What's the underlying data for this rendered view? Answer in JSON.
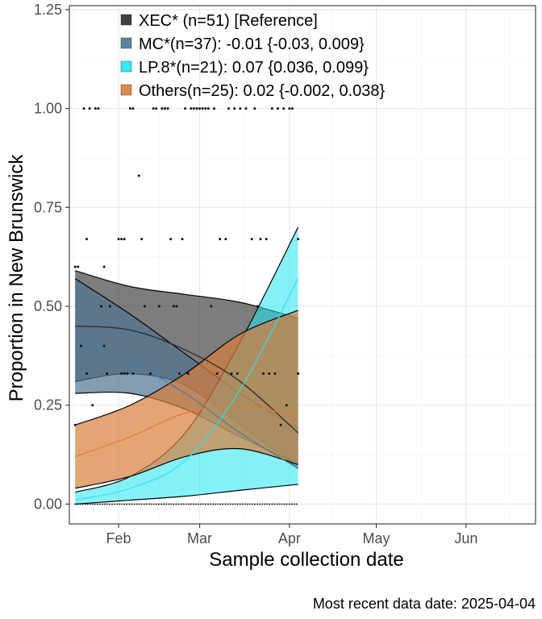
{
  "chart_data": {
    "type": "line",
    "title": "",
    "xlabel": "Sample collection date",
    "ylabel": "Proportion in New Brunswick",
    "caption": "Most recent data date: 2025-04-04",
    "x_domain": [
      "2025-01-15",
      "2025-06-25"
    ],
    "data_x_range": [
      "2025-01-17",
      "2025-04-04"
    ],
    "ylim": [
      -0.05,
      1.26
    ],
    "x_ticks": [
      {
        "date": "2025-02-01",
        "label": "Feb"
      },
      {
        "date": "2025-03-01",
        "label": "Mar"
      },
      {
        "date": "2025-04-01",
        "label": "Apr"
      },
      {
        "date": "2025-05-01",
        "label": "May"
      },
      {
        "date": "2025-06-01",
        "label": "Jun"
      }
    ],
    "y_ticks": [
      {
        "value": 0.0,
        "label": "0.00"
      },
      {
        "value": 0.25,
        "label": "0.25"
      },
      {
        "value": 0.5,
        "label": "0.50"
      },
      {
        "value": 0.75,
        "label": "0.75"
      },
      {
        "value": 1.0,
        "label": "1.00"
      },
      {
        "value": 1.25,
        "label": "1.25"
      }
    ],
    "grid": true,
    "legend_position": "top-left",
    "series": [
      {
        "name": "XEC*",
        "legend_label": "XEC* (n=51)  [Reference]",
        "color": "#404040",
        "fill_opacity": 0.68,
        "fit": {
          "x": [
            "2025-01-17",
            "2025-02-05",
            "2025-02-24",
            "2025-03-15",
            "2025-04-04"
          ],
          "mid": [
            0.45,
            0.44,
            0.39,
            0.31,
            0.18
          ],
          "lower": [
            0.31,
            0.33,
            0.3,
            0.2,
            0.09
          ],
          "upper": [
            0.59,
            0.55,
            0.53,
            0.51,
            0.47
          ]
        }
      },
      {
        "name": "MC*",
        "legend_label": "MC*(n=37): -0.01 {-0.03, 0.009}",
        "color": "#4e7593",
        "fill_opacity": 0.7,
        "fit": {
          "x": [
            "2025-01-17",
            "2025-02-05",
            "2025-02-24",
            "2025-03-15",
            "2025-04-04"
          ],
          "mid": [
            0.42,
            0.36,
            0.28,
            0.18,
            0.09
          ],
          "lower": [
            0.28,
            0.28,
            0.24,
            0.17,
            0.1
          ],
          "upper": [
            0.57,
            0.48,
            0.38,
            0.28,
            0.19
          ]
        }
      },
      {
        "name": "LP.8*",
        "legend_label": "LP.8*(n=21): 0.07 {0.036, 0.099}",
        "color": "#22e5f2",
        "fill_opacity": 0.55,
        "fit": {
          "x": [
            "2025-01-17",
            "2025-02-05",
            "2025-02-24",
            "2025-03-15",
            "2025-04-04"
          ],
          "mid": [
            0.01,
            0.04,
            0.11,
            0.29,
            0.57
          ],
          "lower": [
            0.0,
            0.01,
            0.02,
            0.035,
            0.05
          ],
          "upper": [
            0.03,
            0.07,
            0.18,
            0.41,
            0.7
          ]
        }
      },
      {
        "name": "Others",
        "legend_label": "Others(n=25): 0.02 {-0.002, 0.038}",
        "color": "#d97d3a",
        "fill_opacity": 0.7,
        "fit": {
          "x": [
            "2025-01-17",
            "2025-02-05",
            "2025-02-24",
            "2025-03-15",
            "2025-04-04"
          ],
          "mid": [
            0.12,
            0.17,
            0.23,
            0.25,
            0.22
          ],
          "lower": [
            0.04,
            0.07,
            0.12,
            0.14,
            0.1
          ],
          "upper": [
            0.2,
            0.25,
            0.33,
            0.43,
            0.49
          ]
        }
      }
    ],
    "observations": [
      {
        "x": "2025-01-17",
        "y": 0.6
      },
      {
        "x": "2025-01-18",
        "y": 0.6
      },
      {
        "x": "2025-01-19",
        "y": 0.4
      },
      {
        "x": "2025-01-20",
        "y": 1.0
      },
      {
        "x": "2025-01-21",
        "y": 0.67
      },
      {
        "x": "2025-01-21",
        "y": 0.33
      },
      {
        "x": "2025-01-22",
        "y": 1.0
      },
      {
        "x": "2025-01-23",
        "y": 0.25
      },
      {
        "x": "2025-01-24",
        "y": 1.0
      },
      {
        "x": "2025-01-25",
        "y": 1.0
      },
      {
        "x": "2025-01-26",
        "y": 0.5
      },
      {
        "x": "2025-01-27",
        "y": 0.6
      },
      {
        "x": "2025-01-27",
        "y": 0.4
      },
      {
        "x": "2025-01-28",
        "y": 0.33
      },
      {
        "x": "2025-01-29",
        "y": 0.5
      },
      {
        "x": "2025-02-01",
        "y": 0.67
      },
      {
        "x": "2025-02-02",
        "y": 0.67
      },
      {
        "x": "2025-02-02",
        "y": 0.33
      },
      {
        "x": "2025-02-03",
        "y": 0.67
      },
      {
        "x": "2025-02-03",
        "y": 0.33
      },
      {
        "x": "2025-02-04",
        "y": 0.33
      },
      {
        "x": "2025-02-05",
        "y": 1.0
      },
      {
        "x": "2025-02-06",
        "y": 1.0
      },
      {
        "x": "2025-02-06",
        "y": 0.33
      },
      {
        "x": "2025-02-08",
        "y": 0.83
      },
      {
        "x": "2025-02-09",
        "y": 0.67
      },
      {
        "x": "2025-02-10",
        "y": 0.5
      },
      {
        "x": "2025-02-12",
        "y": 0.33
      },
      {
        "x": "2025-02-13",
        "y": 1.0
      },
      {
        "x": "2025-02-14",
        "y": 1.0
      },
      {
        "x": "2025-02-15",
        "y": 0.5
      },
      {
        "x": "2025-02-16",
        "y": 1.0
      },
      {
        "x": "2025-02-17",
        "y": 1.0
      },
      {
        "x": "2025-02-18",
        "y": 1.0
      },
      {
        "x": "2025-02-19",
        "y": 0.67
      },
      {
        "x": "2025-02-20",
        "y": 0.5
      },
      {
        "x": "2025-02-21",
        "y": 0.5
      },
      {
        "x": "2025-02-22",
        "y": 0.33
      },
      {
        "x": "2025-02-23",
        "y": 0.67
      },
      {
        "x": "2025-02-24",
        "y": 1.0
      },
      {
        "x": "2025-02-25",
        "y": 0.33
      },
      {
        "x": "2025-02-26",
        "y": 1.0
      },
      {
        "x": "2025-02-27",
        "y": 1.0
      },
      {
        "x": "2025-02-28",
        "y": 1.0
      },
      {
        "x": "2025-03-01",
        "y": 1.0
      },
      {
        "x": "2025-03-02",
        "y": 1.0
      },
      {
        "x": "2025-03-03",
        "y": 1.0
      },
      {
        "x": "2025-03-04",
        "y": 1.0
      },
      {
        "x": "2025-03-05",
        "y": 0.5
      },
      {
        "x": "2025-03-06",
        "y": 1.0
      },
      {
        "x": "2025-03-07",
        "y": 0.33
      },
      {
        "x": "2025-03-08",
        "y": 0.67
      },
      {
        "x": "2025-03-10",
        "y": 0.67
      },
      {
        "x": "2025-03-11",
        "y": 1.0
      },
      {
        "x": "2025-03-12",
        "y": 0.33
      },
      {
        "x": "2025-03-13",
        "y": 1.0
      },
      {
        "x": "2025-03-14",
        "y": 0.33
      },
      {
        "x": "2025-03-15",
        "y": 1.0
      },
      {
        "x": "2025-03-17",
        "y": 1.0
      },
      {
        "x": "2025-03-19",
        "y": 0.67
      },
      {
        "x": "2025-03-20",
        "y": 1.0
      },
      {
        "x": "2025-03-21",
        "y": 0.5
      },
      {
        "x": "2025-03-22",
        "y": 0.67
      },
      {
        "x": "2025-03-23",
        "y": 0.33
      },
      {
        "x": "2025-03-24",
        "y": 0.67
      },
      {
        "x": "2025-03-25",
        "y": 0.33
      },
      {
        "x": "2025-03-26",
        "y": 1.0
      },
      {
        "x": "2025-03-27",
        "y": 0.33
      },
      {
        "x": "2025-03-28",
        "y": 1.0
      },
      {
        "x": "2025-03-30",
        "y": 1.0
      },
      {
        "x": "2025-04-01",
        "y": 1.0
      },
      {
        "x": "2025-04-02",
        "y": 1.0
      },
      {
        "x": "2025-04-04",
        "y": 0.67
      },
      {
        "x": "2025-04-04",
        "y": 0.33
      },
      {
        "x": "2025-03-31",
        "y": 0.25
      },
      {
        "x": "2025-03-29",
        "y": 0.2
      },
      {
        "x": "2025-01-17",
        "y": 0.2
      }
    ],
    "zero_rug": {
      "from": "2025-01-17",
      "to": "2025-04-04",
      "y": 0.0
    }
  }
}
